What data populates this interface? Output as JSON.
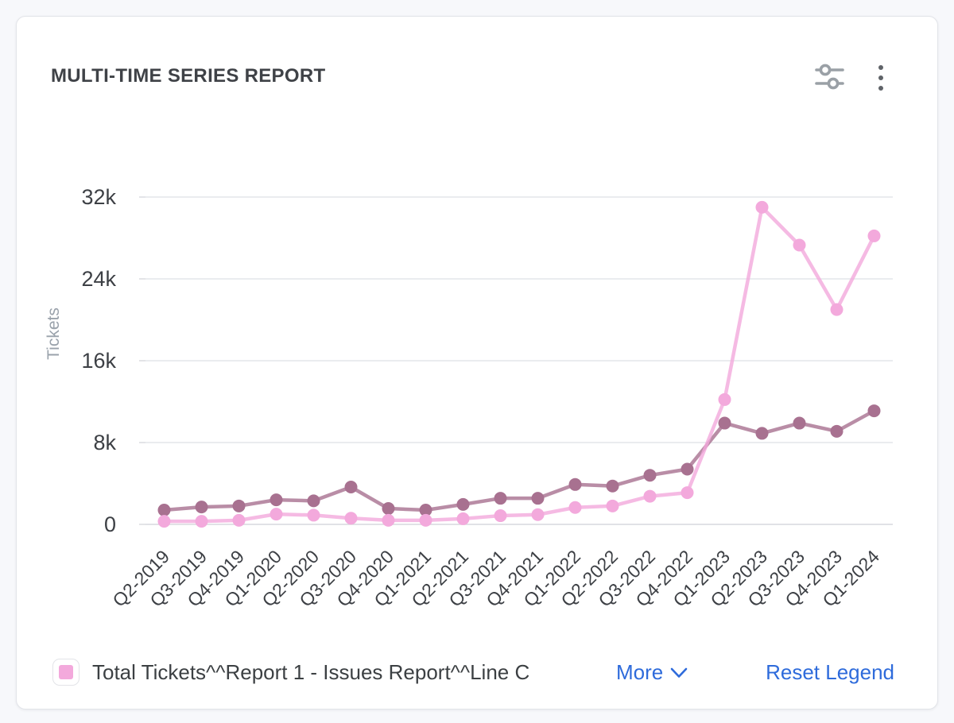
{
  "page": {
    "background": "#f7f8fb",
    "card_background": "#ffffff"
  },
  "header": {
    "title": "MULTI-TIME SERIES REPORT",
    "icons": [
      {
        "name": "filter-sliders-icon",
        "color": "#9aa0a6"
      },
      {
        "name": "kebab-menu-icon",
        "color": "#5f6368"
      }
    ]
  },
  "legend": {
    "items": [
      {
        "label": "Total Tickets^^Report 1 - Issues Report^^Line C",
        "swatch_color": "#f3a9dc"
      }
    ],
    "more_label": "More",
    "reset_label": "Reset Legend",
    "link_color": "#2e6bdb"
  },
  "chart_data": {
    "type": "line",
    "title": "MULTI-TIME SERIES REPORT",
    "xlabel": "",
    "ylabel": "Tickets",
    "ylim": [
      0,
      32000
    ],
    "grid": true,
    "legend_position": "bottom",
    "yticks": [
      {
        "value": 0,
        "label": "0"
      },
      {
        "value": 8000,
        "label": "8k"
      },
      {
        "value": 16000,
        "label": "16k"
      },
      {
        "value": 24000,
        "label": "24k"
      },
      {
        "value": 32000,
        "label": "32k"
      }
    ],
    "categories": [
      "Q2-2019",
      "Q3-2019",
      "Q4-2019",
      "Q1-2020",
      "Q2-2020",
      "Q3-2020",
      "Q4-2020",
      "Q1-2021",
      "Q2-2021",
      "Q3-2021",
      "Q4-2021",
      "Q1-2022",
      "Q2-2022",
      "Q3-2022",
      "Q4-2022",
      "Q1-2023",
      "Q2-2023",
      "Q3-2023",
      "Q4-2023",
      "Q1-2024"
    ],
    "series": [
      {
        "name": "",
        "color": "#a87190",
        "values": [
          1400,
          1700,
          1800,
          2400,
          2300,
          3650,
          1550,
          1400,
          1950,
          2550,
          2550,
          3900,
          3750,
          4800,
          5400,
          9900,
          8900,
          9900,
          9100,
          11100
        ]
      },
      {
        "name": "Total Tickets^^Report 1 - Issues Report^^Line C",
        "color": "#f3a9dc",
        "values": [
          300,
          300,
          400,
          1000,
          900,
          600,
          400,
          400,
          550,
          850,
          950,
          1650,
          1800,
          2750,
          3100,
          12200,
          31000,
          27300,
          21000,
          28200
        ]
      }
    ]
  }
}
